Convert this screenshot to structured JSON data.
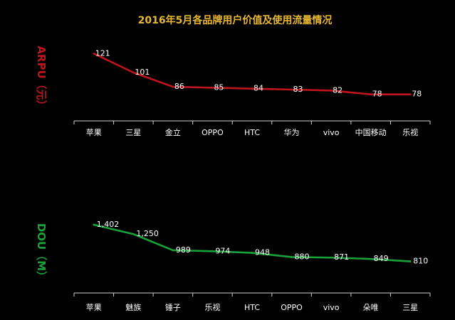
{
  "chart_data": [
    {
      "type": "line",
      "title": "2016年5月各品牌用户价值及使用流量情况",
      "ylabel": "ARPU（元）",
      "categories": [
        "苹果",
        "三星",
        "金立",
        "OPPO",
        "HTC",
        "华为",
        "vivo",
        "中国移动",
        "乐视"
      ],
      "values": [
        121,
        101,
        86,
        85,
        84,
        83,
        82,
        78,
        78
      ],
      "data_labels": [
        "121",
        "101",
        "86",
        "85",
        "84",
        "83",
        "82",
        "78",
        "78"
      ],
      "ylim": [
        50,
        140
      ],
      "grid": false,
      "color": "#c0141c"
    },
    {
      "type": "line",
      "ylabel": "DOU（M）",
      "categories": [
        "苹果",
        "魅族",
        "锤子",
        "乐视",
        "HTC",
        "OPPO",
        "vivo",
        "朵唯",
        "三星"
      ],
      "values": [
        1402,
        1250,
        989,
        974,
        948,
        880,
        871,
        849,
        810
      ],
      "data_labels": [
        "1,402",
        "1,250",
        "989",
        "974",
        "948",
        "880",
        "871",
        "849",
        "810"
      ],
      "ylim": [
        300,
        1700
      ],
      "grid": false,
      "color": "#1aa23a"
    }
  ],
  "colors": {
    "background": "#000000",
    "title": "#e8b830",
    "text": "#ffffff",
    "axis": "#cfcfcf"
  }
}
